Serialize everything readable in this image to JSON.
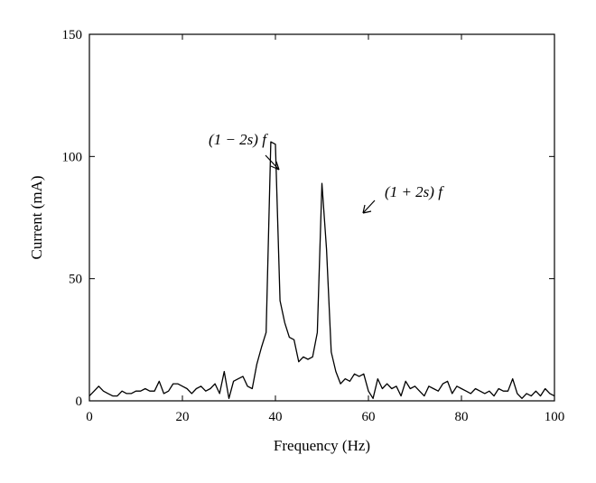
{
  "chart_data": {
    "type": "line",
    "xlabel": "Frequency (Hz)",
    "ylabel": "Current (mA)",
    "xlim": [
      0,
      100
    ],
    "ylim": [
      0,
      150
    ],
    "xticks": [
      "0",
      "20",
      "40",
      "60",
      "80",
      "100"
    ],
    "yticks": [
      "0",
      "50",
      "100",
      "150"
    ],
    "grid": false,
    "annotations": [
      {
        "text": "(1 − 2s) f",
        "x": 41.5,
        "y": 93
      },
      {
        "text": "(1 + 2s) f",
        "x": 58,
        "y": 77
      }
    ],
    "series": [
      {
        "x": [
          0,
          1,
          2,
          3,
          4,
          5,
          6,
          7,
          8,
          9,
          10,
          11,
          12,
          13,
          14,
          15,
          16,
          17,
          18,
          19,
          20,
          21,
          22,
          23,
          24,
          25,
          26,
          27,
          28,
          29,
          30,
          31,
          32,
          33,
          34,
          35,
          36,
          37,
          38,
          39,
          40,
          41,
          42,
          43,
          44,
          45,
          46,
          47,
          48,
          49,
          50,
          51,
          52,
          53,
          54,
          55,
          56,
          57,
          58,
          59,
          60,
          61,
          62,
          63,
          64,
          65,
          66,
          67,
          68,
          69,
          70,
          71,
          72,
          73,
          74,
          75,
          76,
          77,
          78,
          79,
          80,
          81,
          82,
          83,
          84,
          85,
          86,
          87,
          88,
          89,
          90,
          91,
          92,
          93,
          94,
          95,
          96,
          97,
          98,
          99,
          100
        ],
        "values": [
          2,
          4,
          6,
          4,
          3,
          2,
          2,
          4,
          3,
          3,
          4,
          4,
          5,
          4,
          4,
          8,
          3,
          4,
          7,
          7,
          6,
          5,
          3,
          5,
          6,
          4,
          5,
          7,
          3,
          12,
          1,
          8,
          9,
          10,
          6,
          5,
          15,
          22,
          28,
          106,
          105,
          41,
          32,
          26,
          25,
          16,
          18,
          17,
          18,
          28,
          89,
          62,
          20,
          12,
          7,
          9,
          8,
          11,
          10,
          11,
          4,
          1,
          9,
          5,
          7,
          5,
          6,
          2,
          8,
          5,
          6,
          4,
          2,
          6,
          5,
          4,
          7,
          8,
          3,
          6,
          5,
          4,
          3,
          5,
          4,
          3,
          4,
          2,
          5,
          4,
          4,
          9,
          3,
          1,
          3,
          2,
          4,
          2,
          5,
          3,
          2
        ]
      }
    ]
  }
}
